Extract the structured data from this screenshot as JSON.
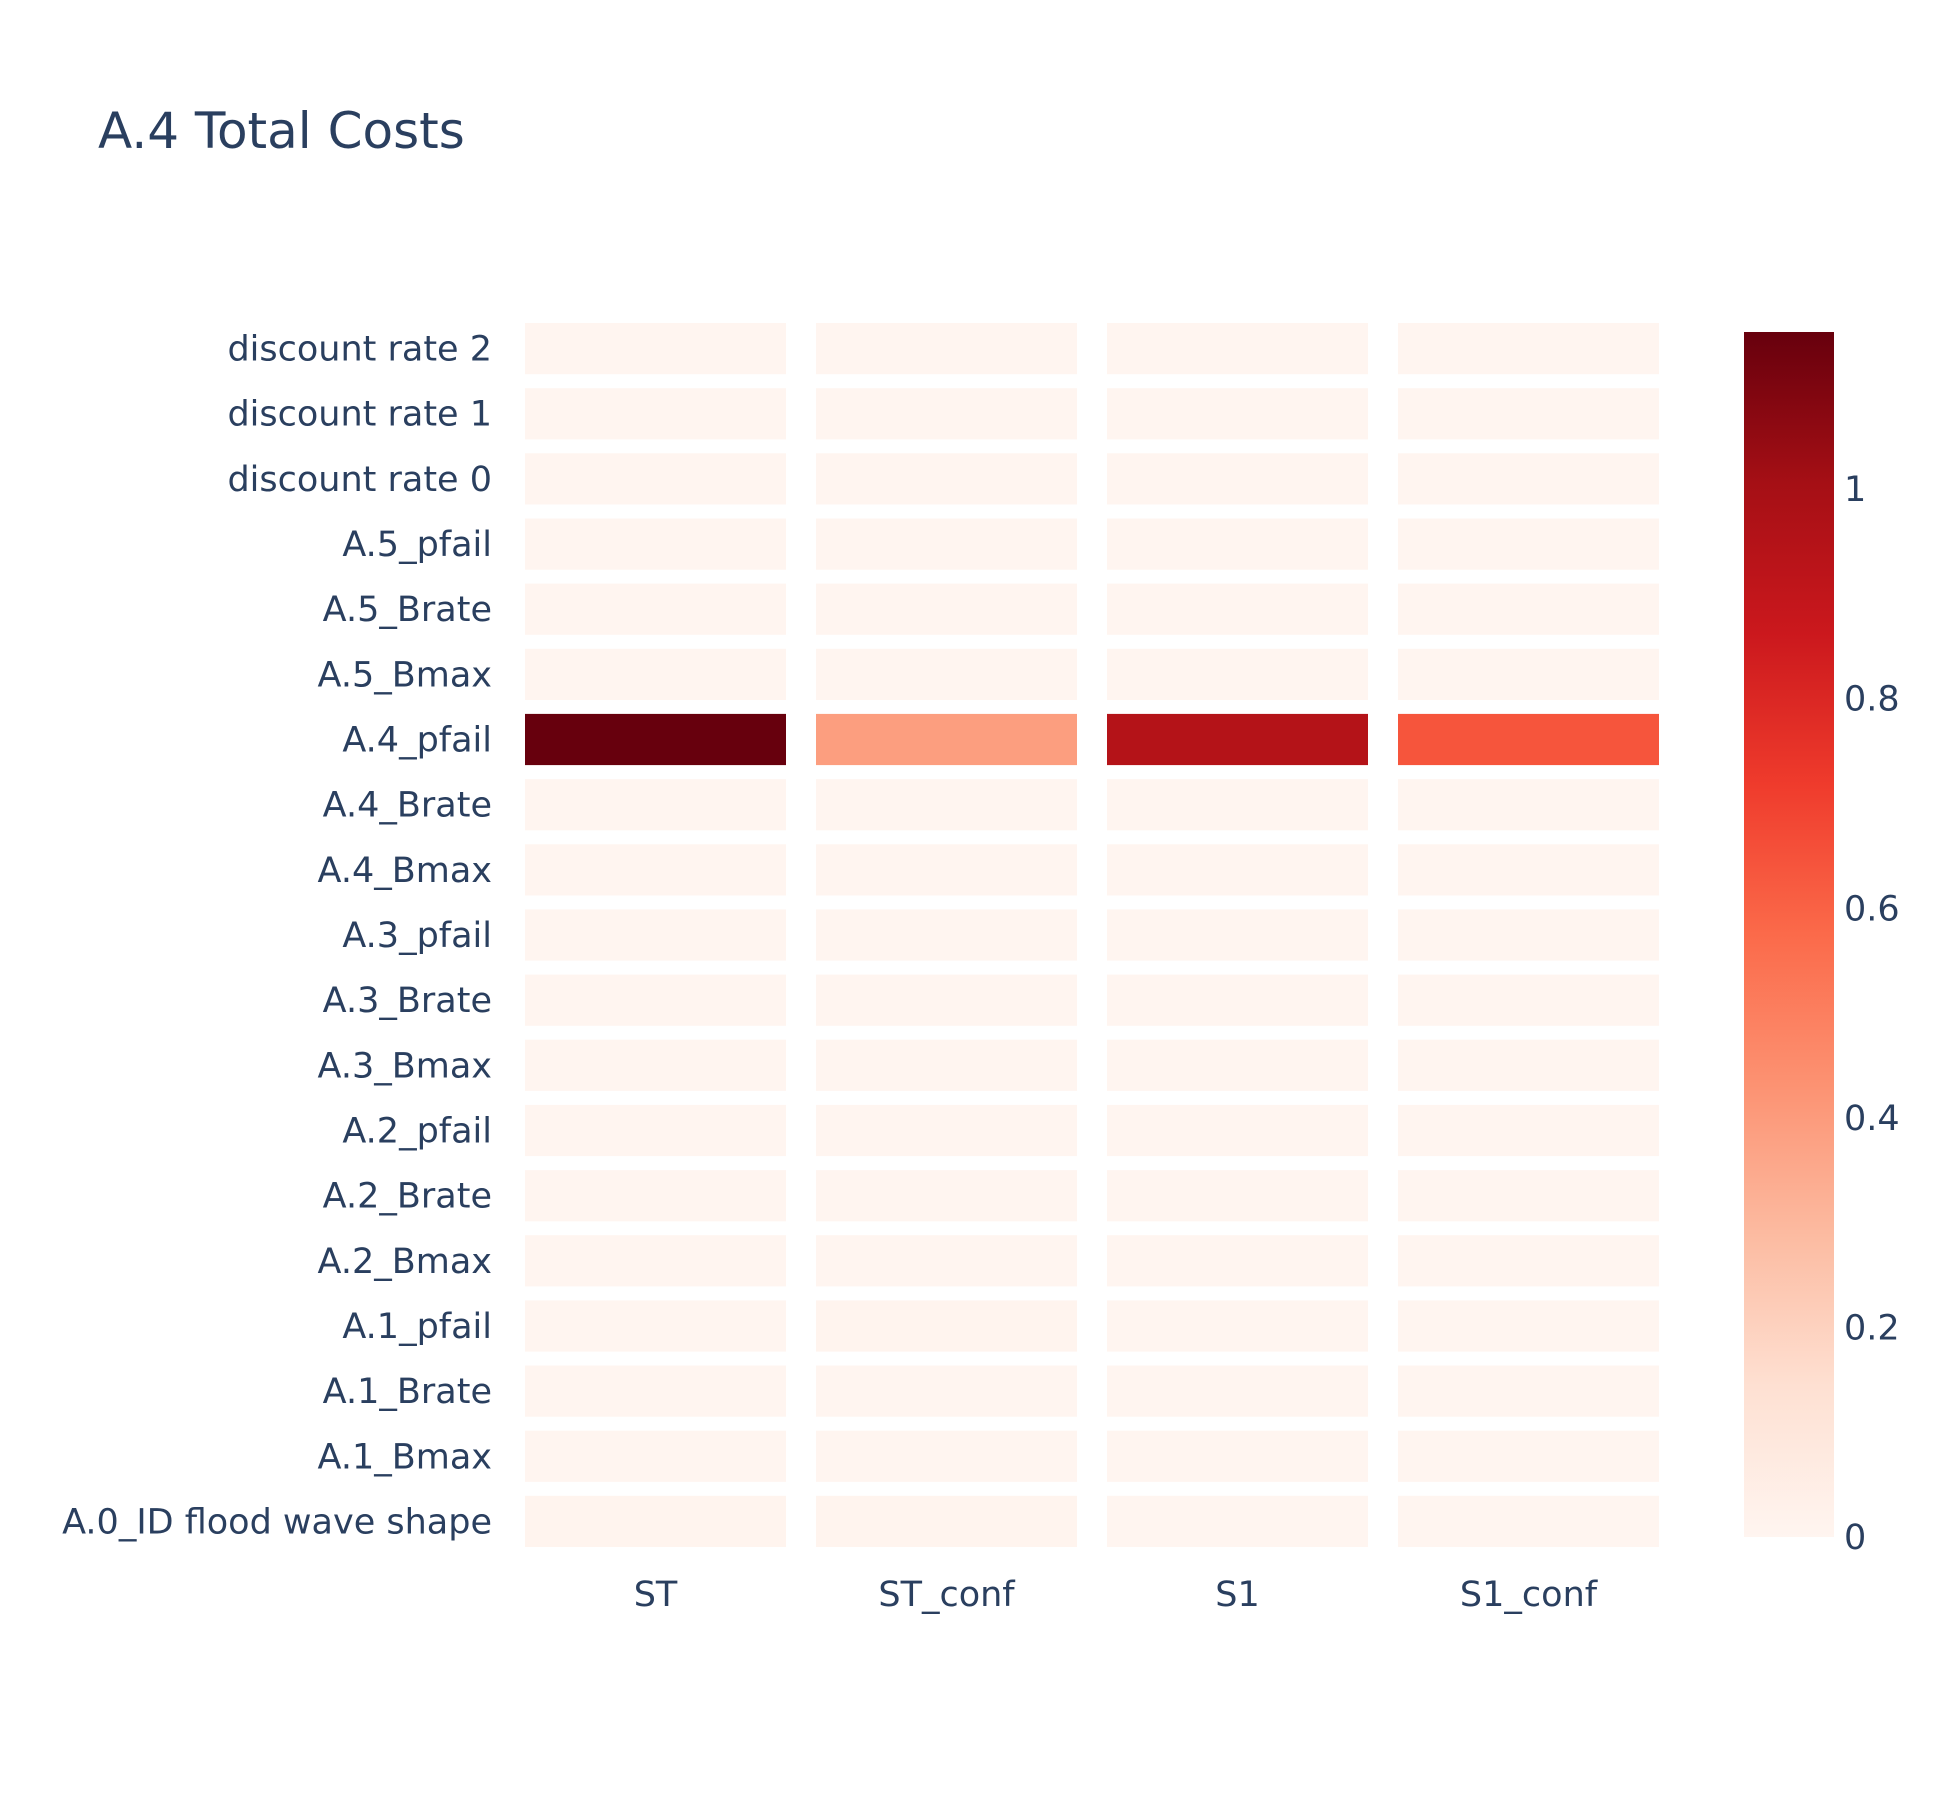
{
  "chart_data": {
    "type": "heatmap",
    "title": "A.4 Total Costs",
    "x_categories": [
      "ST",
      "ST_conf",
      "S1",
      "S1_conf"
    ],
    "y_categories": [
      "A.0_ID flood wave shape",
      "A.1_Bmax",
      "A.1_Brate",
      "A.1_pfail",
      "A.2_Bmax",
      "A.2_Brate",
      "A.2_pfail",
      "A.3_Bmax",
      "A.3_Brate",
      "A.3_pfail",
      "A.4_Bmax",
      "A.4_Brate",
      "A.4_pfail",
      "A.5_Bmax",
      "A.5_Brate",
      "A.5_pfail",
      "discount rate 0",
      "discount rate 1",
      "discount rate 2"
    ],
    "z": [
      [
        0.01,
        0.01,
        0.0,
        0.0
      ],
      [
        0.0,
        0.0,
        0.0,
        0.0
      ],
      [
        0.0,
        0.0,
        0.0,
        0.0
      ],
      [
        0.0,
        0.01,
        0.0,
        0.0
      ],
      [
        0.0,
        0.0,
        0.0,
        0.0
      ],
      [
        0.0,
        0.0,
        0.0,
        0.0
      ],
      [
        0.0,
        0.0,
        0.0,
        0.0
      ],
      [
        0.0,
        0.0,
        0.0,
        0.0
      ],
      [
        0.0,
        0.0,
        0.0,
        0.0
      ],
      [
        0.0,
        0.0,
        0.0,
        0.0
      ],
      [
        0.0,
        0.0,
        0.0,
        0.0
      ],
      [
        0.0,
        0.0,
        0.0,
        0.0
      ],
      [
        1.15,
        0.39,
        0.95,
        0.64
      ],
      [
        0.0,
        0.0,
        0.0,
        0.0
      ],
      [
        0.0,
        0.0,
        0.0,
        0.0
      ],
      [
        0.0,
        0.0,
        0.0,
        0.0
      ],
      [
        0.0,
        0.0,
        0.0,
        0.0
      ],
      [
        0.0,
        0.0,
        0.0,
        0.0
      ],
      [
        0.0,
        0.0,
        0.0,
        0.0
      ]
    ],
    "zmin": 0,
    "zmax": 1.15,
    "colorscale_name": "Reds",
    "colorscale": [
      [
        0.0,
        "#fff5f0"
      ],
      [
        0.125,
        "#fee0d2"
      ],
      [
        0.25,
        "#fcbba1"
      ],
      [
        0.375,
        "#fc9272"
      ],
      [
        0.5,
        "#fb6a4a"
      ],
      [
        0.625,
        "#ef3b2c"
      ],
      [
        0.75,
        "#cb181d"
      ],
      [
        0.875,
        "#a50f15"
      ],
      [
        1.0,
        "#67000d"
      ]
    ],
    "colorbar_ticks": [
      {
        "value": 0,
        "label": "0"
      },
      {
        "value": 0.2,
        "label": "0.2"
      },
      {
        "value": 0.4,
        "label": "0.4"
      },
      {
        "value": 0.6,
        "label": "0.6"
      },
      {
        "value": 0.8,
        "label": "0.8"
      },
      {
        "value": 1,
        "label": "1"
      }
    ],
    "text_color": "#2a3f5f",
    "grid": false
  }
}
